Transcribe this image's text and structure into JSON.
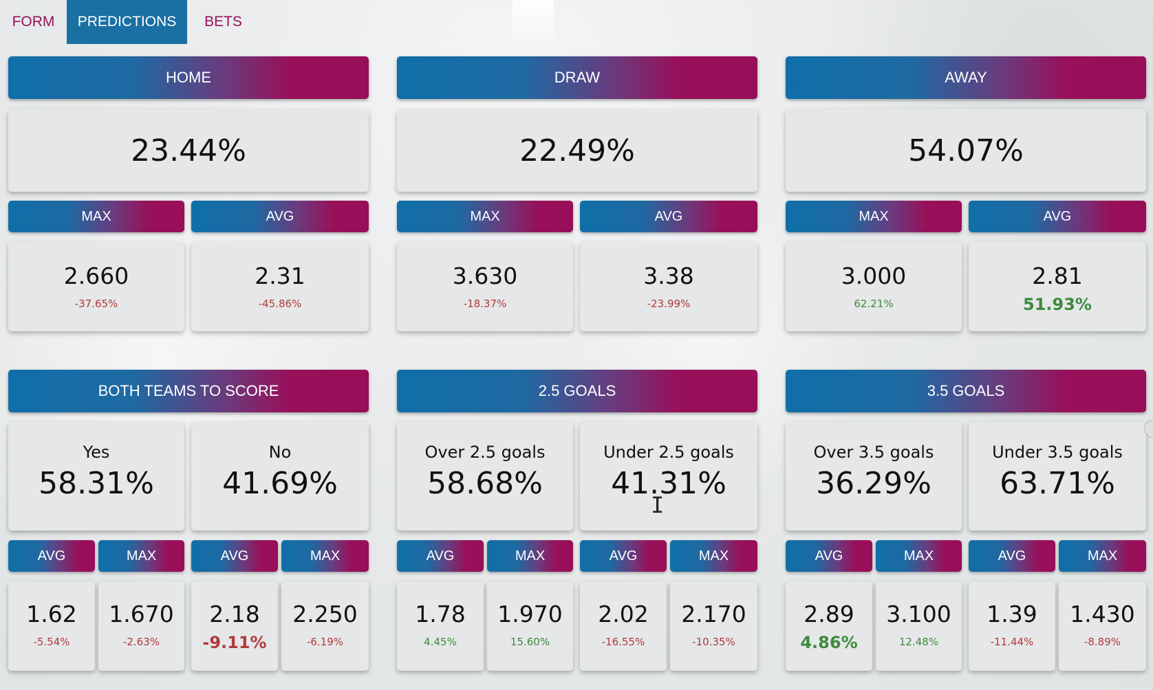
{
  "tabs": [
    {
      "label": "FORM",
      "active": false
    },
    {
      "label": "PREDICTIONS",
      "active": true
    },
    {
      "label": "BETS",
      "active": false
    }
  ],
  "result_panels": [
    {
      "title": "HOME",
      "percent": "23.44%",
      "max_label": "MAX",
      "avg_label": "AVG",
      "max": {
        "odds": "2.660",
        "change": "-37.65%",
        "trend": "neg"
      },
      "avg": {
        "odds": "2.31",
        "change": "-45.86%",
        "trend": "neg"
      }
    },
    {
      "title": "DRAW",
      "percent": "22.49%",
      "max_label": "MAX",
      "avg_label": "AVG",
      "max": {
        "odds": "3.630",
        "change": "-18.37%",
        "trend": "neg"
      },
      "avg": {
        "odds": "3.38",
        "change": "-23.99%",
        "trend": "neg"
      }
    },
    {
      "title": "AWAY",
      "percent": "54.07%",
      "max_label": "MAX",
      "avg_label": "AVG",
      "max": {
        "odds": "3.000",
        "change": "62.21%",
        "trend": "pos"
      },
      "avg": {
        "odds": "2.81",
        "change": "51.93%",
        "trend": "pos",
        "highlight": true
      }
    }
  ],
  "market_panels": [
    {
      "title": "BOTH TEAMS TO SCORE",
      "options": [
        {
          "name": "Yes",
          "percent": "58.31%",
          "avg_label": "AVG",
          "max_label": "MAX",
          "avg": {
            "odds": "1.62",
            "change": "-5.54%",
            "trend": "neg"
          },
          "max": {
            "odds": "1.670",
            "change": "-2.63%",
            "trend": "neg"
          }
        },
        {
          "name": "No",
          "percent": "41.69%",
          "avg_label": "AVG",
          "max_label": "MAX",
          "avg": {
            "odds": "2.18",
            "change": "-9.11%",
            "trend": "neg",
            "highlight": true
          },
          "max": {
            "odds": "2.250",
            "change": "-6.19%",
            "trend": "neg"
          }
        }
      ]
    },
    {
      "title": "2.5 GOALS",
      "options": [
        {
          "name": "Over 2.5 goals",
          "percent": "58.68%",
          "avg_label": "AVG",
          "max_label": "MAX",
          "avg": {
            "odds": "1.78",
            "change": "4.45%",
            "trend": "pos"
          },
          "max": {
            "odds": "1.970",
            "change": "15.60%",
            "trend": "pos"
          }
        },
        {
          "name": "Under 2.5 goals",
          "percent": "41.31%",
          "avg_label": "AVG",
          "max_label": "MAX",
          "avg": {
            "odds": "2.02",
            "change": "-16.55%",
            "trend": "neg"
          },
          "max": {
            "odds": "2.170",
            "change": "-10.35%",
            "trend": "neg"
          }
        }
      ]
    },
    {
      "title": "3.5 GOALS",
      "options": [
        {
          "name": "Over 3.5 goals",
          "percent": "36.29%",
          "avg_label": "AVG",
          "max_label": "MAX",
          "avg": {
            "odds": "2.89",
            "change": "4.86%",
            "trend": "pos",
            "highlight": true
          },
          "max": {
            "odds": "3.100",
            "change": "12.48%",
            "trend": "pos"
          }
        },
        {
          "name": "Under 3.5 goals",
          "percent": "63.71%",
          "avg_label": "AVG",
          "max_label": "MAX",
          "avg": {
            "odds": "1.39",
            "change": "-11.44%",
            "trend": "neg"
          },
          "max": {
            "odds": "1.430",
            "change": "-8.89%",
            "trend": "neg"
          }
        }
      ]
    }
  ],
  "colors": {
    "brand_blue": "#0f6fa8",
    "brand_magenta": "#98105a",
    "positive": "#3e8a3e",
    "negative": "#b03a3a"
  }
}
